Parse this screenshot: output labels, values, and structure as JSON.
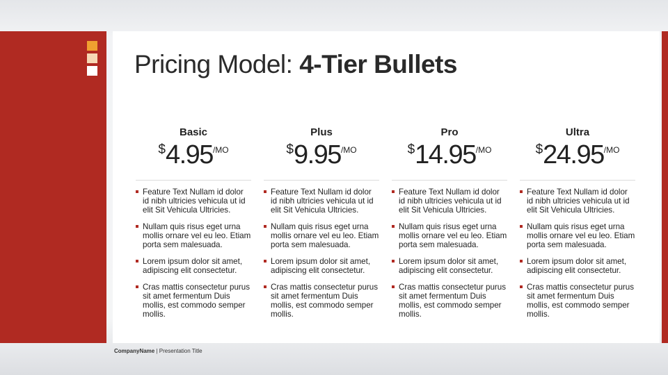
{
  "title": {
    "light": "Pricing Model: ",
    "bold": "4-Tier Bullets"
  },
  "accent_squares": [
    "#f0a030",
    "#f6d8b4",
    "#ffffff"
  ],
  "colors": {
    "accent": "#b02a22"
  },
  "tiers": [
    {
      "name": "Basic",
      "currency": "$",
      "amount": "4.95",
      "period": "/MO",
      "features": [
        "Feature Text Nullam id dolor id nibh ultricies vehicula ut id elit Sit Vehicula Ultricies.",
        "Nullam quis risus eget urna mollis ornare vel eu leo. Etiam porta sem malesuada.",
        "Lorem ipsum dolor sit amet, adipiscing elit consectetur.",
        "Cras mattis consectetur purus sit amet fermentum Duis mollis, est commodo semper mollis."
      ]
    },
    {
      "name": "Plus",
      "currency": "$",
      "amount": "9.95",
      "period": "/MO",
      "features": [
        "Feature Text Nullam id dolor id nibh ultricies vehicula ut id elit Sit Vehicula Ultricies.",
        "Nullam quis risus eget urna mollis ornare vel eu leo. Etiam porta sem malesuada.",
        "Lorem ipsum dolor sit amet, adipiscing elit consectetur.",
        "Cras mattis consectetur purus sit amet fermentum Duis mollis, est commodo semper mollis."
      ]
    },
    {
      "name": "Pro",
      "currency": "$",
      "amount": "14.95",
      "period": "/MO",
      "features": [
        "Feature Text Nullam id dolor id nibh ultricies vehicula ut id elit Sit Vehicula Ultricies.",
        "Nullam quis risus eget urna mollis ornare vel eu leo. Etiam porta sem malesuada.",
        "Lorem ipsum dolor sit amet, adipiscing elit consectetur.",
        "Cras mattis consectetur purus sit amet fermentum Duis mollis, est commodo semper mollis."
      ]
    },
    {
      "name": "Ultra",
      "currency": "$",
      "amount": "24.95",
      "period": "/MO",
      "features": [
        "Feature Text Nullam id dolor id nibh ultricies vehicula ut id elit Sit Vehicula Ultricies.",
        "Nullam quis risus eget urna mollis ornare vel eu leo. Etiam porta sem malesuada.",
        "Lorem ipsum dolor sit amet, adipiscing elit consectetur.",
        "Cras mattis consectetur purus sit amet fermentum Duis mollis, est commodo semper mollis."
      ]
    }
  ],
  "footer": {
    "company": "CompanyName",
    "separator": " | ",
    "presentation": "Presentation Title"
  }
}
